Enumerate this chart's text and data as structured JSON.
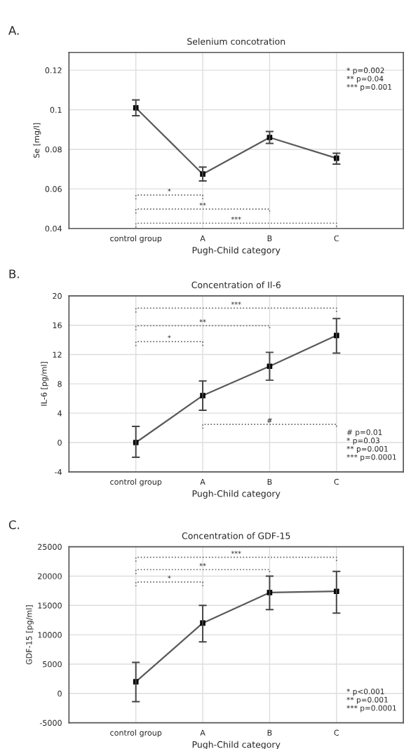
{
  "chart_data": [
    {
      "type": "line",
      "title": "Selenium concotration",
      "xlabel": "Pugh-Child category",
      "ylabel": "Se [mg/l]",
      "categories": [
        "control group",
        "A",
        "B",
        "C"
      ],
      "values": [
        0.101,
        0.0675,
        0.086,
        0.0755
      ],
      "errors": [
        [
          0.097,
          0.105
        ],
        [
          0.064,
          0.071
        ],
        [
          0.083,
          0.089
        ],
        [
          0.0725,
          0.078
        ]
      ],
      "color": "#5a5a5a",
      "marker": "square",
      "ylim": [
        0.04,
        0.129
      ],
      "yticks": [
        0.04,
        0.06,
        0.08,
        0.1,
        0.12
      ],
      "grid": true,
      "annotations": [
        "A.",
        "* p=0.002\n** p=0.04\n*** p=0.001",
        "*",
        "**",
        "***"
      ]
    },
    {
      "type": "line",
      "title": "Concentration of Il-6",
      "xlabel": "Pugh-Child category",
      "ylabel": "IL-6 [pg/ml]",
      "categories": [
        "control group",
        "A",
        "B",
        "C"
      ],
      "values": [
        0,
        6.4,
        10.4,
        14.6
      ],
      "errors": [
        [
          -2,
          2.2
        ],
        [
          4.4,
          8.4
        ],
        [
          8.5,
          12.3
        ],
        [
          12.2,
          16.9
        ]
      ],
      "color": "#5a5a5a",
      "marker": "square",
      "ylim": [
        -4,
        20
      ],
      "yticks": [
        -4,
        0,
        4,
        8,
        12,
        16,
        20
      ],
      "grid": true,
      "annotations": [
        "B.",
        "# p=0.01\n* p=0.03\n** p=0.001\n*** p=0.0001",
        "*",
        "**",
        "***",
        "#"
      ]
    },
    {
      "type": "line",
      "title": "Concentration of GDF-15",
      "xlabel": "Pugh-Child category",
      "ylabel": "GDF-15 [pg/ml]",
      "categories": [
        "control group",
        "A",
        "B",
        "C"
      ],
      "values": [
        2000,
        12000,
        17200,
        17400
      ],
      "errors": [
        [
          -1400,
          5300
        ],
        [
          8800,
          15000
        ],
        [
          14300,
          20000
        ],
        [
          13700,
          20800
        ]
      ],
      "color": "#5a5a5a",
      "marker": "square",
      "ylim": [
        -5000,
        25000
      ],
      "yticks": [
        -5000,
        0,
        5000,
        10000,
        15000,
        20000,
        25000
      ],
      "grid": true,
      "annotations": [
        "C.",
        "* p<0.001\n** p=0.001\n*** p=0.0001",
        "*",
        "**",
        "***"
      ]
    }
  ]
}
